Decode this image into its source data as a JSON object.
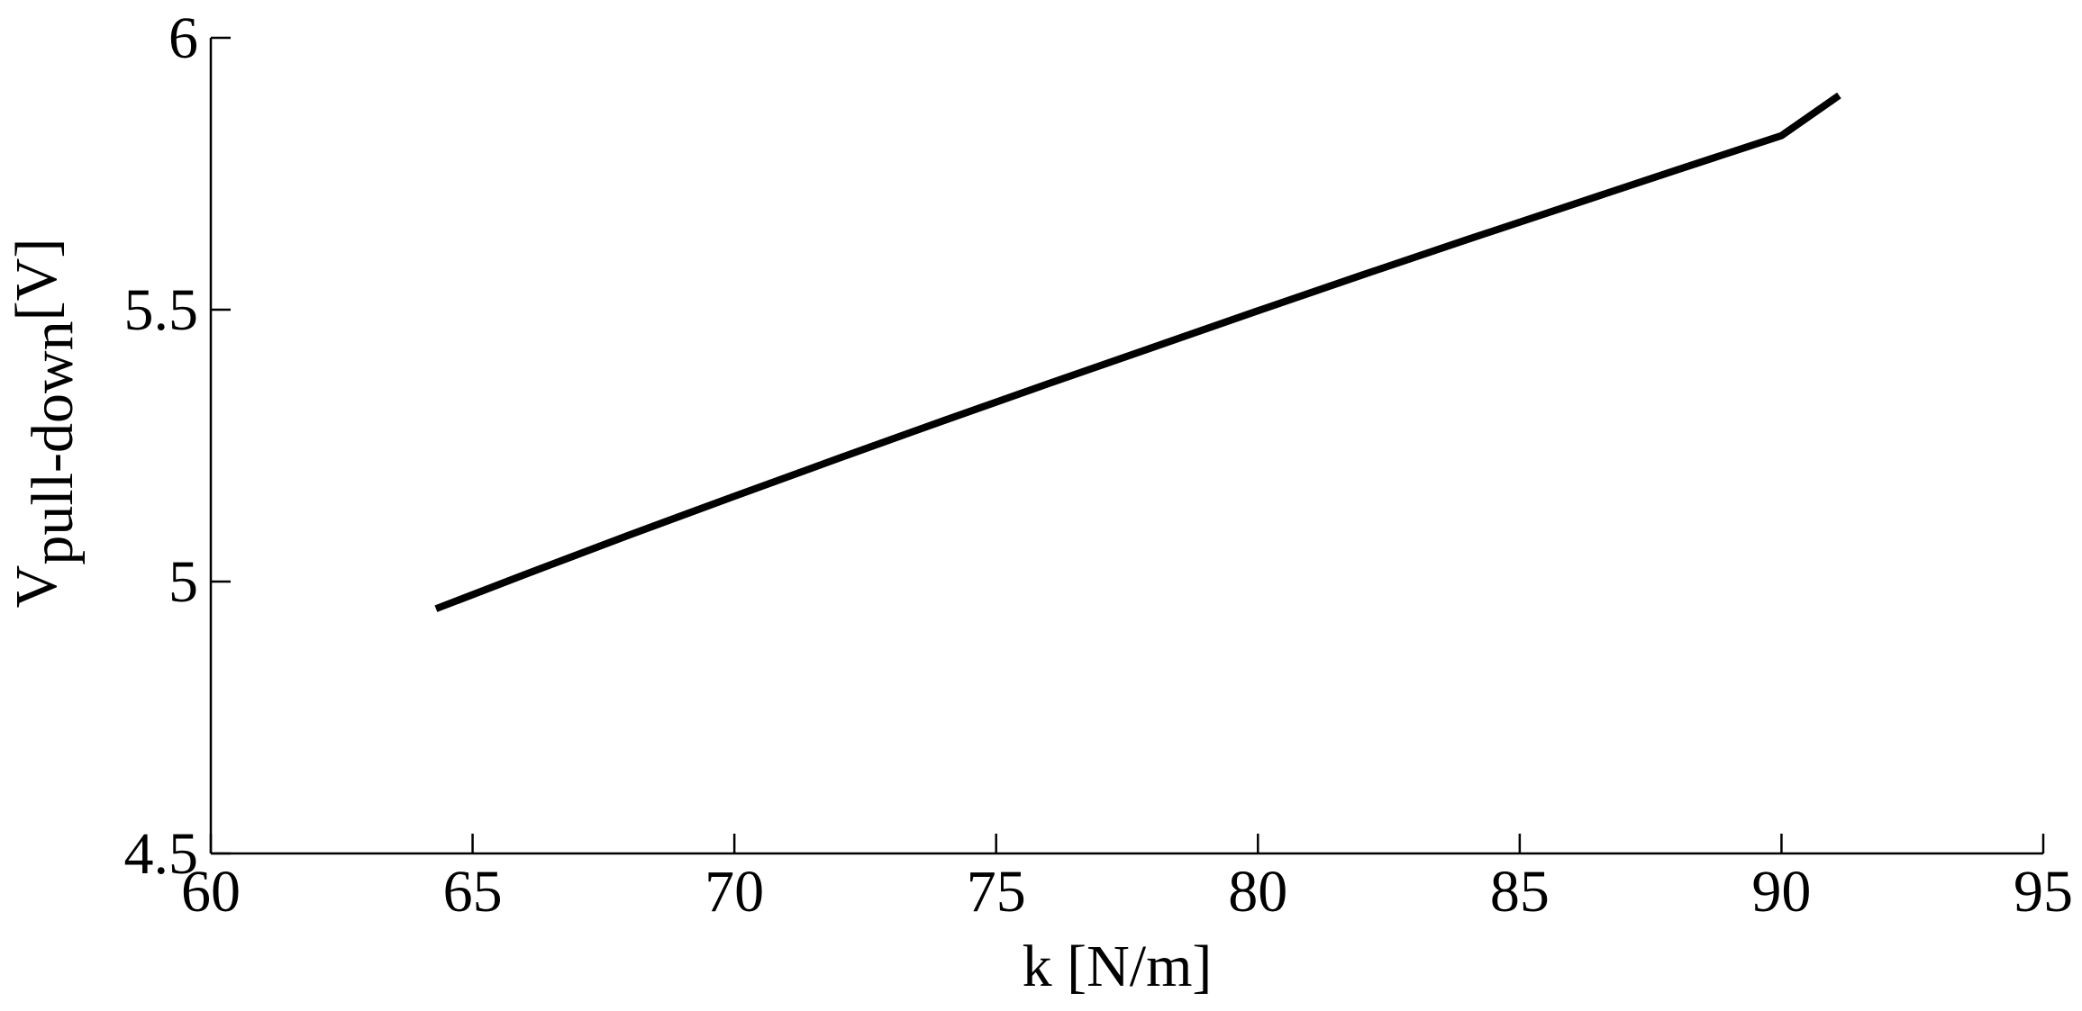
{
  "chart_data": {
    "type": "line",
    "title": "",
    "xlabel": "k [N/m]",
    "ylabel": {
      "base": "V",
      "subscript": "pull-down",
      "unit": "[V]"
    },
    "xlim": [
      60,
      95
    ],
    "ylim": [
      4.5,
      6
    ],
    "x_ticks": [
      60,
      65,
      70,
      75,
      80,
      85,
      90,
      95
    ],
    "y_ticks": [
      4.5,
      5,
      5.5,
      6
    ],
    "x_tick_labels": [
      "60",
      "65",
      "70",
      "75",
      "80",
      "85",
      "90",
      "95"
    ],
    "y_tick_labels": [
      "4.5",
      "5",
      "5.5",
      "6"
    ],
    "grid": false,
    "legend": "none",
    "series": [
      {
        "color": "#000000",
        "x": [
          64.3,
          66,
          68,
          70,
          72,
          74,
          76,
          78,
          80,
          82,
          84,
          86,
          88,
          90,
          91.1
        ],
        "y": [
          4.95,
          5.013,
          5.086,
          5.157,
          5.227,
          5.296,
          5.364,
          5.431,
          5.498,
          5.564,
          5.629,
          5.693,
          5.757,
          5.82,
          5.894
        ]
      }
    ]
  }
}
